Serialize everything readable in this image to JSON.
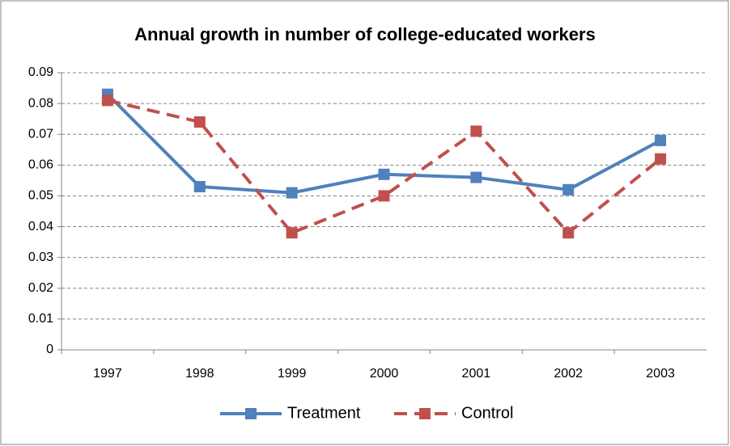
{
  "chart_data": {
    "type": "line",
    "title": "Annual growth in number of college-educated workers",
    "categories": [
      "1997",
      "1998",
      "1999",
      "2000",
      "2001",
      "2002",
      "2003"
    ],
    "series": [
      {
        "name": "Treatment",
        "color": "#4f81bd",
        "dashed": false,
        "values": [
          0.083,
          0.053,
          0.051,
          0.057,
          0.056,
          0.052,
          0.068
        ]
      },
      {
        "name": "Control",
        "color": "#c0504d",
        "dashed": true,
        "values": [
          0.081,
          0.074,
          0.038,
          0.05,
          0.071,
          0.038,
          0.062
        ]
      }
    ],
    "ylim": [
      0,
      0.09
    ],
    "yticks": [
      0,
      0.01,
      0.02,
      0.03,
      0.04,
      0.05,
      0.06,
      0.07,
      0.08,
      0.09
    ],
    "grid": true,
    "legend": "bottom"
  }
}
